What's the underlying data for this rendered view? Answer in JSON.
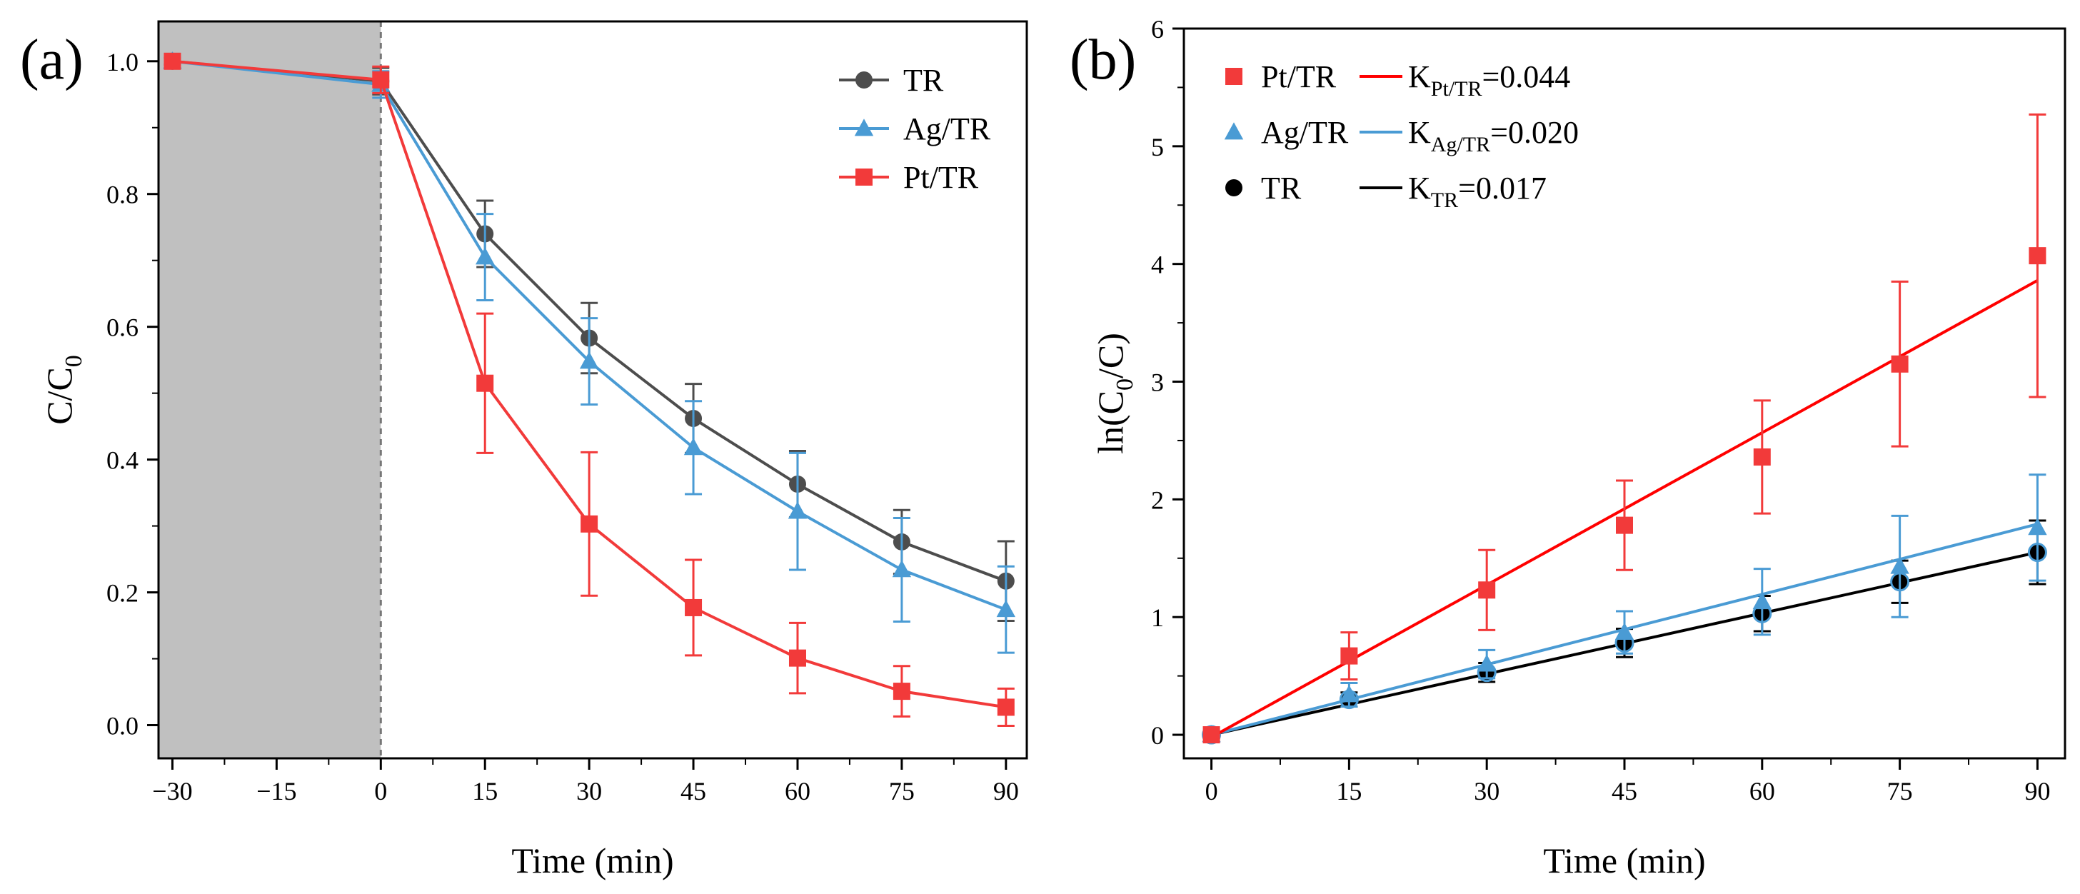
{
  "chart_data": [
    {
      "type": "line",
      "panel_label": "(a)",
      "xlabel": "Time (min)",
      "ylabel": "C/C",
      "ylabel_sub": "0",
      "xlim": [
        -32,
        93
      ],
      "ylim": [
        -0.05,
        1.06
      ],
      "xticks": [
        -30,
        -15,
        0,
        15,
        30,
        45,
        60,
        75,
        90
      ],
      "xtick_labels": [
        "−30",
        "−15",
        "0",
        "15",
        "30",
        "45",
        "60",
        "75",
        "90"
      ],
      "yticks": [
        0.0,
        0.2,
        0.4,
        0.6,
        0.8,
        1.0
      ],
      "ytick_labels": [
        "0.0",
        "0.2",
        "0.4",
        "0.6",
        "0.8",
        "1.0"
      ],
      "dark_region": [
        -32,
        0
      ],
      "dark_region_color": "#c0c0c0",
      "x": [
        -30,
        0,
        15,
        30,
        45,
        60,
        75,
        90
      ],
      "series": [
        {
          "name": "TR",
          "color": "#4d4d4d",
          "marker": "circle",
          "values": [
            1.0,
            0.97,
            0.74,
            0.583,
            0.462,
            0.363,
            0.276,
            0.217
          ],
          "errors": [
            0.005,
            0.02,
            0.05,
            0.053,
            0.052,
            0.05,
            0.048,
            0.06
          ]
        },
        {
          "name": "Ag/TR",
          "color": "#4a9bd4",
          "marker": "triangle",
          "values": [
            1.0,
            0.965,
            0.705,
            0.548,
            0.418,
            0.322,
            0.234,
            0.174
          ],
          "errors": [
            0.005,
            0.02,
            0.065,
            0.065,
            0.07,
            0.088,
            0.078,
            0.065
          ]
        },
        {
          "name": "Pt/TR",
          "color": "#f23a3a",
          "marker": "square",
          "values": [
            1.0,
            0.972,
            0.515,
            0.303,
            0.177,
            0.101,
            0.051,
            0.027
          ],
          "errors": [
            0.005,
            0.02,
            0.105,
            0.108,
            0.072,
            0.053,
            0.038,
            0.028
          ]
        }
      ]
    },
    {
      "type": "scatter",
      "panel_label": "(b)",
      "xlabel": "Time (min)",
      "ylabel_prefix": "ln(C",
      "ylabel_sub": "0",
      "ylabel_suffix": "/C)",
      "xlim": [
        -3,
        93
      ],
      "ylim": [
        -0.2,
        6
      ],
      "xticks": [
        0,
        15,
        30,
        45,
        60,
        75,
        90
      ],
      "xtick_labels": [
        "0",
        "15",
        "30",
        "45",
        "60",
        "75",
        "90"
      ],
      "yticks": [
        0,
        1,
        2,
        3,
        4,
        5,
        6
      ],
      "ytick_labels": [
        "0",
        "1",
        "2",
        "3",
        "4",
        "5",
        "6"
      ],
      "x": [
        0,
        15,
        30,
        45,
        60,
        75,
        90
      ],
      "series": [
        {
          "name": "Pt/TR",
          "color": "#f23a3a",
          "marker": "square",
          "fit_color": "#ff0000",
          "k_label": "K",
          "k_sub": "Pt/TR",
          "k_value": "=0.044",
          "fit": {
            "x0": 0,
            "y0": -0.02,
            "x1": 90,
            "y1": 3.86
          },
          "values": [
            0.0,
            0.67,
            1.23,
            1.78,
            2.36,
            3.15,
            4.07
          ],
          "errors": [
            0.03,
            0.2,
            0.34,
            0.38,
            0.48,
            0.7,
            1.2
          ]
        },
        {
          "name": "Ag/TR",
          "color": "#4a9bd4",
          "marker": "triangle",
          "fit_color": "#4a9bd4",
          "k_label": "K",
          "k_sub": "Ag/TR",
          "k_value": "=0.020",
          "fit": {
            "x0": 0,
            "y0": 0.0,
            "x1": 90,
            "y1": 1.79
          },
          "values": [
            0.0,
            0.34,
            0.6,
            0.87,
            1.13,
            1.43,
            1.76
          ],
          "errors": [
            0.03,
            0.1,
            0.12,
            0.18,
            0.28,
            0.43,
            0.45
          ]
        },
        {
          "name": "TR",
          "color": "#000000",
          "marker": "circle",
          "fit_color": "#000000",
          "k_label": "K",
          "k_sub": "TR",
          "k_value": "=0.017",
          "fit": {
            "x0": 0,
            "y0": 0.0,
            "x1": 90,
            "y1": 1.55
          },
          "values": [
            0.0,
            0.3,
            0.53,
            0.78,
            1.03,
            1.3,
            1.55
          ],
          "errors": [
            0.03,
            0.06,
            0.08,
            0.12,
            0.15,
            0.18,
            0.27
          ]
        }
      ]
    }
  ]
}
